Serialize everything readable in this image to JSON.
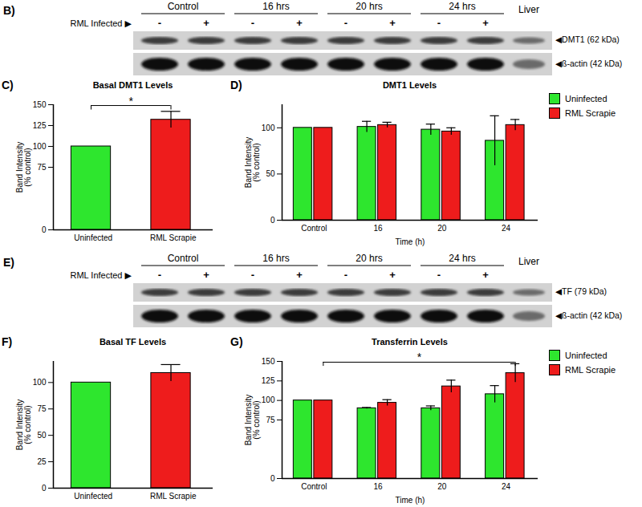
{
  "blots": [
    {
      "panel": "B)",
      "row_label": "RML Infected ▶",
      "groups": [
        "Control",
        "16 hrs",
        "20 hrs",
        "24 hrs"
      ],
      "signs": [
        "-",
        "+",
        "-",
        "+",
        "-",
        "+",
        "-",
        "+"
      ],
      "extra_lane": "Liver",
      "bands": [
        "◀DMT1 (62 kDa)",
        "◀ß-actin (42 kDa)"
      ]
    },
    {
      "panel": "E)",
      "row_label": "RML Infected ▶",
      "groups": [
        "Control",
        "16 hrs",
        "20 hrs",
        "24 hrs"
      ],
      "signs": [
        "-",
        "+",
        "-",
        "+",
        "-",
        "+",
        "-",
        "+"
      ],
      "extra_lane": "Liver",
      "bands": [
        "◀TF (79 kDa)",
        "◀ß-actin (42 kDa)"
      ]
    }
  ],
  "chart_data": [
    {
      "panel": "C)",
      "type": "bar",
      "title": "Basal DMT1 Levels",
      "y_label": "Band Intensity\n(% control)",
      "categories": [
        "Uninfected",
        "RML Scrapie"
      ],
      "values": [
        100,
        132
      ],
      "errors": [
        null,
        10
      ],
      "colors": [
        "#2ee62e",
        "#ee1c1c"
      ],
      "ylim": [
        0,
        150
      ],
      "yticks": [
        0,
        75,
        100,
        125,
        150
      ],
      "annotations": [
        {
          "text": "*",
          "x1": "Uninfected",
          "x2": "RML Scrapie",
          "y": 149
        }
      ]
    },
    {
      "panel": "D)",
      "type": "bar",
      "title": "DMT1 Levels",
      "x_label": "Time (h)",
      "y_label": "Band Intensity\n(% control)",
      "categories": [
        "Control",
        "16",
        "20",
        "24"
      ],
      "series": [
        {
          "name": "Uninfected",
          "color": "#2ee62e",
          "values": [
            100,
            101,
            98,
            86
          ],
          "errors": [
            null,
            6,
            6,
            27
          ]
        },
        {
          "name": "RML Scrapie",
          "color": "#ee1c1c",
          "values": [
            100,
            103,
            96,
            103
          ],
          "errors": [
            null,
            3,
            4,
            6
          ]
        }
      ],
      "ylim": [
        0,
        125
      ],
      "yticks": [
        0,
        50,
        100
      ],
      "legend": "top-right"
    },
    {
      "panel": "F)",
      "type": "bar",
      "title": "Basal TF Levels",
      "y_label": "Band Intensity\n(% control)",
      "categories": [
        "Uninfected",
        "RML Scrapie"
      ],
      "values": [
        100,
        109
      ],
      "errors": [
        null,
        8
      ],
      "colors": [
        "#2ee62e",
        "#ee1c1c"
      ],
      "ylim": [
        0,
        120
      ],
      "yticks": [
        0,
        25,
        50,
        75,
        100
      ]
    },
    {
      "panel": "G)",
      "type": "bar",
      "title": "Transferrin Levels",
      "x_label": "Time (h)",
      "y_label": "Band Intensity\n(% control)",
      "categories": [
        "Control",
        "16",
        "20",
        "24"
      ],
      "series": [
        {
          "name": "Uninfected",
          "color": "#2ee62e",
          "values": [
            100,
            90,
            90,
            108
          ],
          "errors": [
            null,
            1,
            3,
            11
          ]
        },
        {
          "name": "RML Scrapie",
          "color": "#ee1c1c",
          "values": [
            100,
            97,
            118,
            135
          ],
          "errors": [
            null,
            4,
            8,
            12
          ]
        }
      ],
      "ylim": [
        0,
        150
      ],
      "yticks": [
        0,
        75,
        100,
        125,
        150
      ],
      "legend": "top-right",
      "annotations": [
        {
          "text": "*",
          "x1": "Control",
          "x2": "24",
          "series": "RML Scrapie",
          "y": 149
        }
      ]
    }
  ]
}
